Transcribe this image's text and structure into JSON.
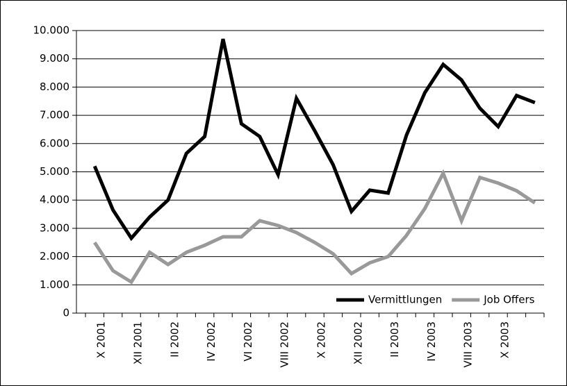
{
  "chart_data": {
    "type": "line",
    "categories": [
      "X 2001",
      null,
      "XII 2001",
      null,
      "II 2002",
      null,
      "IV 2002",
      null,
      "VI 2002",
      null,
      "VIII 2002",
      null,
      "X 2002",
      null,
      "XII 2002",
      null,
      "II 2003",
      null,
      "IV 2003",
      null,
      "VIII 2003",
      null,
      "X 2003",
      null,
      null
    ],
    "series": [
      {
        "name": "Vermittlungen",
        "color": "#000000",
        "values": [
          5200,
          3650,
          2650,
          3400,
          4000,
          5650,
          6250,
          9700,
          6700,
          6250,
          4900,
          7600,
          6450,
          5250,
          3600,
          4350,
          4250,
          6300,
          7800,
          8800,
          8250,
          7250,
          6600,
          7700,
          7450
        ]
      },
      {
        "name": "Job Offers",
        "color": "#999999",
        "values": [
          2500,
          1500,
          1100,
          2150,
          1720,
          2150,
          2400,
          2700,
          2700,
          3270,
          3100,
          2850,
          2500,
          2100,
          1400,
          1780,
          2000,
          2750,
          3700,
          4950,
          3270,
          4800,
          4600,
          4330,
          3900
        ]
      }
    ],
    "ylim": [
      0,
      10000
    ],
    "yticks": [
      0,
      {
        "value": 1000,
        "label": "1.000"
      },
      {
        "value": 2000,
        "label": "2.000"
      },
      {
        "value": 3000,
        "label": "3.000"
      },
      {
        "value": 4000,
        "label": "4.000"
      },
      {
        "value": 5000,
        "label": "5.000"
      },
      {
        "value": 6000,
        "label": "6.000"
      },
      {
        "value": 7000,
        "label": "7.000"
      },
      {
        "value": 8000,
        "label": "8.000"
      },
      {
        "value": 9000,
        "label": "9.000"
      },
      {
        "value": 10000,
        "label": "10.000"
      }
    ],
    "grid": true,
    "legend": "lower right"
  }
}
